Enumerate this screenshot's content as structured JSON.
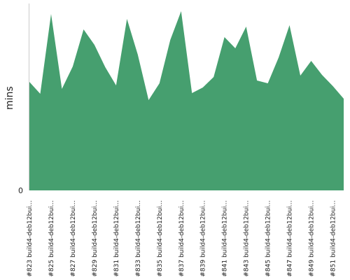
{
  "chart_data": {
    "type": "area",
    "y_label": "mins",
    "color": "#469f6f",
    "categories": [
      "#823 build4-deb12bui...",
      null,
      "#825 build4-deb12bui...",
      null,
      "#827 build4-deb12bui...",
      null,
      "#829 build4-deb12bui...",
      null,
      "#831 build4-deb12bui...",
      null,
      "#833 build4-deb12bui...",
      null,
      "#835 build4-deb12bui...",
      null,
      "#837 build4-deb12bui...",
      null,
      "#839 build4-deb12bui...",
      null,
      "#841 build4-deb12bui...",
      null,
      "#843 build4-deb12bui...",
      null,
      "#845 build4-deb12bui...",
      null,
      "#847 build4-deb12bui...",
      null,
      "#849 build4-deb12bui...",
      null,
      "#851 build4-deb12bui...",
      null
    ],
    "values": [
      155,
      138,
      252,
      145,
      177,
      230,
      208,
      176,
      150,
      245,
      194,
      129,
      153,
      215,
      256,
      139,
      147,
      162,
      219,
      203,
      234,
      157,
      153,
      190,
      236,
      164,
      185,
      165,
      149,
      131
    ],
    "ylim": [
      0,
      267
    ],
    "yticks": [
      0
    ]
  }
}
